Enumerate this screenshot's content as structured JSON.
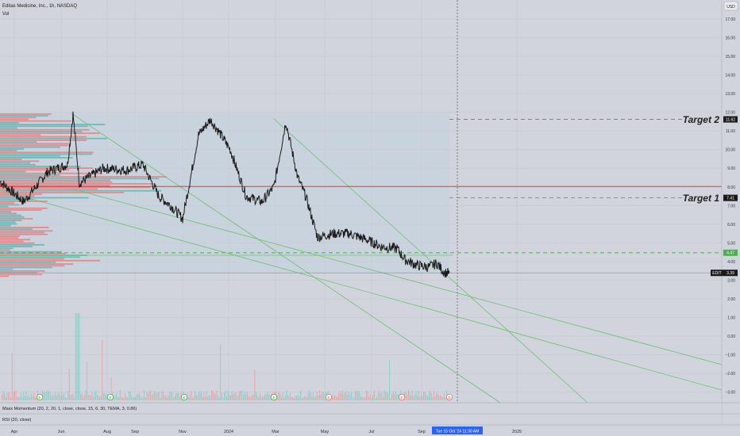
{
  "header": {
    "title": "Editas Medicine, Inc., 1h, NASDAQ",
    "vol_label": "Vol"
  },
  "price_axis": {
    "currency": "USD",
    "ticks": [
      "17.00",
      "16.00",
      "15.00",
      "14.00",
      "13.00",
      "12.00",
      "11.00",
      "10.00",
      "9.00",
      "8.00",
      "7.00",
      "6.00",
      "5.00",
      "4.00",
      "3.00",
      "2.00",
      "1.00",
      "0.00",
      "−1.00",
      "−2.00",
      "−3.00"
    ],
    "tick_values": [
      17,
      16,
      15,
      14,
      13,
      12,
      11,
      10,
      9,
      8,
      7,
      6,
      5,
      4,
      3,
      2,
      1,
      0,
      -1,
      -2,
      -3
    ]
  },
  "time_axis": {
    "labels": [
      "Apr",
      "Jun",
      "Aug",
      "Sep",
      "Nov",
      "2024",
      "Mar",
      "May",
      "Jul",
      "Sep",
      "2025"
    ],
    "crosshair_label": "Tue 15 Oct '24   11:30 AM"
  },
  "badges": {
    "target2": {
      "value": "11.62",
      "price": 11.62,
      "color": "#1a1a1a"
    },
    "target1": {
      "value": "7.41",
      "price": 7.41,
      "color": "#1a1a1a"
    },
    "support": {
      "value": "4.47",
      "price": 4.47,
      "color": "#4caf50"
    },
    "ticker": {
      "symbol": "EDIT",
      "value": "3.39",
      "price": 3.39,
      "color": "#1a1a1a"
    }
  },
  "annotations": {
    "target2_label": "Target 2",
    "target1_label": "Target 1"
  },
  "lines": {
    "red_level": 8.02,
    "red_color": "#e53935",
    "green_color": "#4caf50"
  },
  "indicators": {
    "pane1": "Maxx Momentum (20, 2, 20, 1, close, close, 15, 6, 30, TEMA, 3, 0.86)",
    "pane2": "RSI (20, close)"
  },
  "event_markers": [
    "E",
    "E",
    "E",
    "E",
    "E",
    "E",
    "D"
  ],
  "chart_data": {
    "type": "line",
    "series": [
      {
        "x": [
          0,
          30,
          60,
          85,
          92,
          100,
          130,
          160,
          180,
          200,
          215,
          230,
          240,
          250,
          265,
          275,
          290,
          310,
          330,
          345,
          360,
          375,
          385,
          400,
          420,
          440,
          460,
          480,
          500,
          510,
          525,
          540,
          550,
          560,
          566
        ],
        "values": [
          8.3,
          7.2,
          8.8,
          9.2,
          11.9,
          8.2,
          9.0,
          8.9,
          9.2,
          7.5,
          7.0,
          6.3,
          8.5,
          10.8,
          11.6,
          11.0,
          10.0,
          7.5,
          7.2,
          8.0,
          11.5,
          8.5,
          7.5,
          5.3,
          5.5,
          5.5,
          5.2,
          4.8,
          4.7,
          4.1,
          3.8,
          3.7,
          3.9,
          3.4,
          3.39
        ]
      }
    ],
    "ylim": [
      -3.3,
      17.8
    ],
    "horizontal_levels": [
      11.62,
      7.41,
      8.02,
      4.47,
      3.39
    ]
  }
}
